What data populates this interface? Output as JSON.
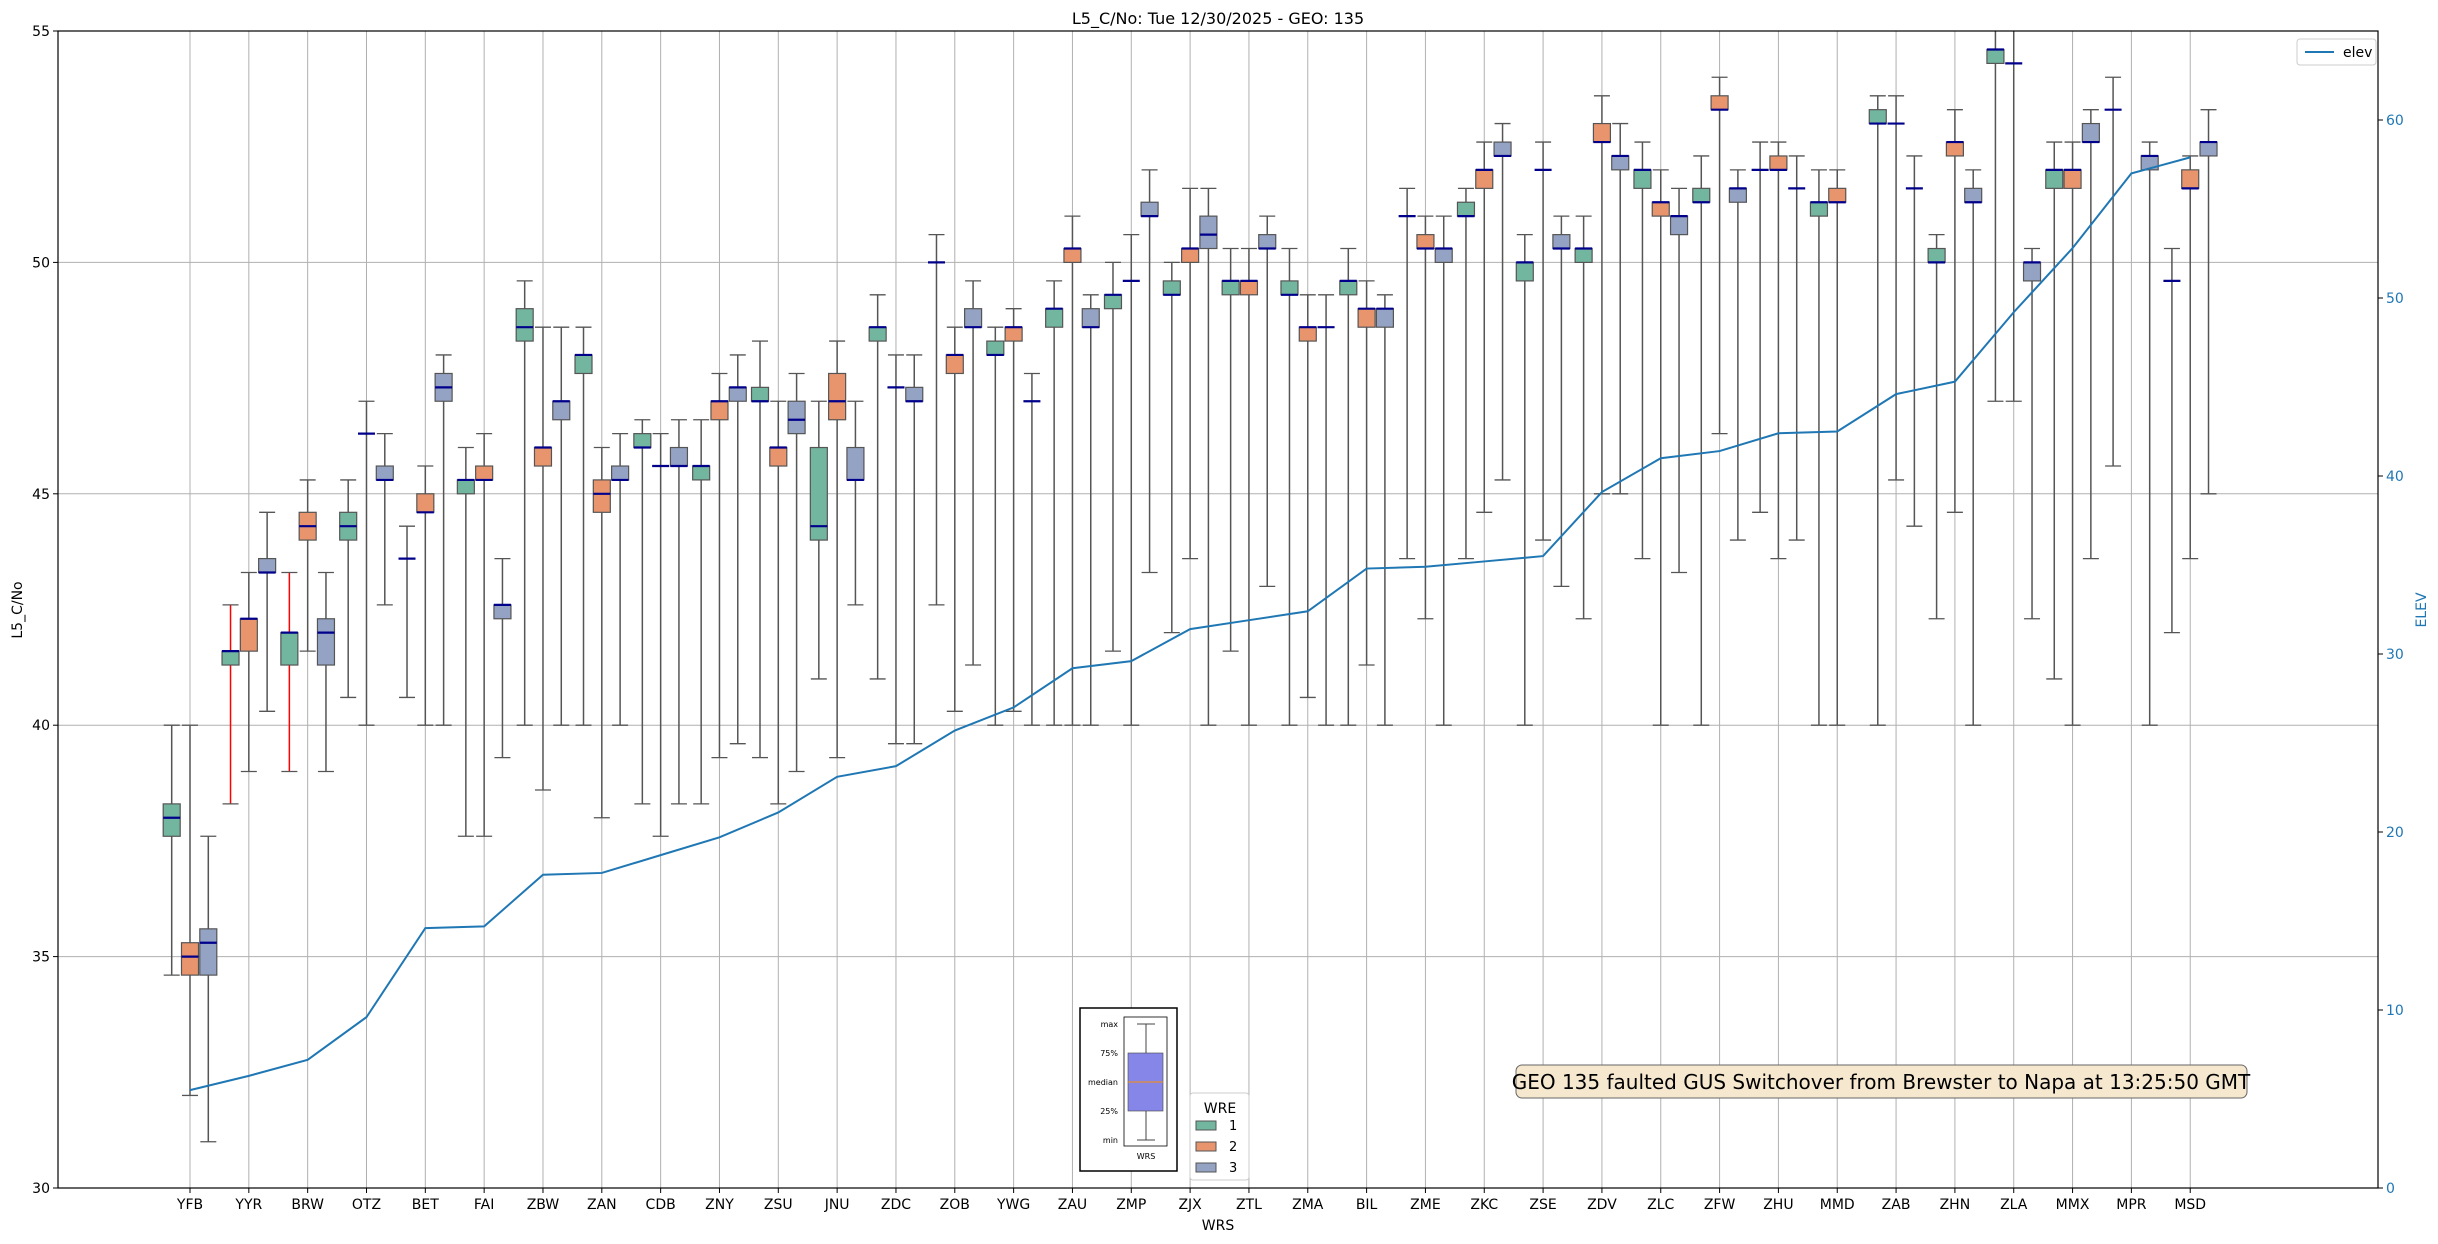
{
  "chart_data": {
    "type": "boxplot",
    "title": "L5_C/No: Tue 12/30/2025 - GEO: 135",
    "xlabel": "WRS",
    "ylabel": "L5_C/No",
    "y2label": "ELEV",
    "ylim": [
      30,
      55
    ],
    "y2lim": [
      0,
      65
    ],
    "yticks": [
      30,
      35,
      40,
      45,
      50,
      55
    ],
    "y2ticks": [
      0,
      10,
      20,
      30,
      40,
      50,
      60
    ],
    "grid": true,
    "colors": {
      "1": "#72b6a0",
      "2": "#e8956e",
      "3": "#94a3c4",
      "median": "#00008b",
      "whisker": "#555555",
      "flagged_whisker": "#ff0000",
      "elev": "#1f77b4"
    },
    "legend": {
      "title": "WRE",
      "entries": [
        "1",
        "2",
        "3"
      ],
      "placement": "bottom-center"
    },
    "line_legend": {
      "label": "elev",
      "placement": "top-right"
    },
    "annotation": "GEO 135 faulted GUS Switchover from Brewster to Napa at 13:25:50 GMT",
    "inset_key": {
      "labels": [
        "max",
        "75%",
        "median",
        "25%",
        "min"
      ],
      "xlabel": "WRS"
    },
    "box_stat_order": [
      "min",
      "q1",
      "median",
      "q3",
      "max"
    ],
    "stations": [
      {
        "name": "YFB",
        "elev": 5.5,
        "wre": {
          "1": [
            34.6,
            37.6,
            38.0,
            38.3,
            40
          ],
          "2": [
            32.0,
            34.6,
            35.0,
            35.3,
            40
          ],
          "3": [
            31.0,
            34.6,
            35.3,
            35.6,
            37.6
          ]
        }
      },
      {
        "name": "YYR",
        "elev": 6.3,
        "flagged": [
          "1"
        ],
        "wre": {
          "1": [
            38.3,
            41.3,
            41.6,
            41.6,
            42.6
          ],
          "2": [
            39.0,
            41.6,
            42.3,
            42.3,
            43.3
          ],
          "3": [
            40.3,
            43.3,
            43.3,
            43.6,
            44.6
          ]
        }
      },
      {
        "name": "BRW",
        "elev": 7.2,
        "flagged": [
          "1"
        ],
        "wre": {
          "1": [
            39.0,
            41.3,
            42.0,
            42.0,
            43.3
          ],
          "2": [
            41.6,
            44.0,
            44.3,
            44.6,
            45.3
          ],
          "3": [
            39.0,
            41.3,
            42.0,
            42.3,
            43.3
          ]
        }
      },
      {
        "name": "OTZ",
        "elev": 9.6,
        "wre": {
          "1": [
            40.6,
            44.0,
            44.3,
            44.6,
            45.3
          ],
          "2": [
            40,
            46.3,
            46.3,
            46.3,
            47.0
          ],
          "3": [
            42.6,
            45.3,
            45.3,
            45.6,
            46.3
          ]
        }
      },
      {
        "name": "BET",
        "elev": 14.6,
        "wre": {
          "1": [
            40.6,
            43.6,
            43.6,
            43.6,
            44.3
          ],
          "2": [
            40,
            44.6,
            44.6,
            45.0,
            45.6
          ],
          "3": [
            40,
            47.0,
            47.3,
            47.6,
            48.0
          ]
        }
      },
      {
        "name": "FAI",
        "elev": 14.7,
        "wre": {
          "1": [
            37.6,
            45.0,
            45.3,
            45.3,
            46.0
          ],
          "2": [
            37.6,
            45.3,
            45.3,
            45.6,
            46.3
          ],
          "3": [
            39.3,
            42.3,
            42.6,
            42.6,
            43.6
          ]
        }
      },
      {
        "name": "ZBW",
        "elev": 17.6,
        "wre": {
          "1": [
            40,
            48.3,
            48.6,
            49.0,
            49.6
          ],
          "2": [
            38.6,
            45.6,
            46.0,
            46.0,
            48.6
          ],
          "3": [
            40,
            46.6,
            47.0,
            47.0,
            48.6
          ]
        }
      },
      {
        "name": "ZAN",
        "elev": 17.7,
        "wre": {
          "1": [
            40,
            47.6,
            48.0,
            48.0,
            48.6
          ],
          "2": [
            38.0,
            44.6,
            45.0,
            45.3,
            46.0
          ],
          "3": [
            40,
            45.3,
            45.3,
            45.6,
            46.3
          ]
        }
      },
      {
        "name": "CDB",
        "elev": 18.7,
        "wre": {
          "1": [
            38.3,
            46.0,
            46.0,
            46.3,
            46.6
          ],
          "2": [
            37.6,
            45.6,
            45.6,
            45.6,
            46.3
          ],
          "3": [
            38.3,
            45.6,
            45.6,
            46.0,
            46.6
          ]
        }
      },
      {
        "name": "ZNY",
        "elev": 19.7,
        "wre": {
          "1": [
            38.3,
            45.3,
            45.6,
            45.6,
            46.6
          ],
          "2": [
            39.3,
            46.6,
            47.0,
            47.0,
            47.6
          ],
          "3": [
            39.6,
            47.0,
            47.3,
            47.3,
            48.0
          ]
        }
      },
      {
        "name": "ZSU",
        "elev": 21.1,
        "wre": {
          "1": [
            39.3,
            47.0,
            47.0,
            47.3,
            48.3
          ],
          "2": [
            38.3,
            45.6,
            46.0,
            46.0,
            47.0
          ],
          "3": [
            39.0,
            46.3,
            46.6,
            47.0,
            47.6
          ]
        }
      },
      {
        "name": "JNU",
        "elev": 23.1,
        "wre": {
          "1": [
            41.0,
            44.0,
            44.3,
            46.0,
            47.0
          ],
          "2": [
            39.3,
            46.6,
            47.0,
            47.6,
            48.3
          ],
          "3": [
            42.6,
            45.3,
            45.3,
            46.0,
            47.0
          ]
        }
      },
      {
        "name": "ZDC",
        "elev": 23.7,
        "wre": {
          "1": [
            41.0,
            48.3,
            48.6,
            48.6,
            49.3
          ],
          "2": [
            39.6,
            47.3,
            47.3,
            47.3,
            48.0
          ],
          "3": [
            39.6,
            47.0,
            47.0,
            47.3,
            48.0
          ]
        }
      },
      {
        "name": "ZOB",
        "elev": 25.7,
        "wre": {
          "1": [
            42.6,
            50.0,
            50.0,
            50.0,
            50.6
          ],
          "2": [
            40.3,
            47.6,
            48.0,
            48.0,
            48.6
          ],
          "3": [
            41.3,
            48.6,
            48.6,
            49.0,
            49.6
          ]
        }
      },
      {
        "name": "YWG",
        "elev": 27.0,
        "wre": {
          "1": [
            40,
            48.0,
            48.0,
            48.3,
            48.6
          ],
          "2": [
            40.3,
            48.3,
            48.6,
            48.6,
            49.0
          ],
          "3": [
            40,
            47.0,
            47.0,
            47.0,
            47.6
          ]
        }
      },
      {
        "name": "ZAU",
        "elev": 29.2,
        "wre": {
          "1": [
            40,
            48.6,
            49.0,
            49.0,
            49.6
          ],
          "2": [
            40,
            50.0,
            50.3,
            50.3,
            51.0
          ],
          "3": [
            40,
            48.6,
            48.6,
            49.0,
            49.3
          ]
        }
      },
      {
        "name": "ZMP",
        "elev": 29.6,
        "wre": {
          "1": [
            41.6,
            49.0,
            49.3,
            49.3,
            50.0
          ],
          "2": [
            40,
            49.6,
            49.6,
            49.6,
            50.6
          ],
          "3": [
            43.3,
            51.0,
            51.0,
            51.3,
            52.0
          ]
        }
      },
      {
        "name": "ZJX",
        "elev": 31.4,
        "wre": {
          "1": [
            42.0,
            49.3,
            49.3,
            49.6,
            50.0
          ],
          "2": [
            43.6,
            50.0,
            50.3,
            50.3,
            51.6
          ],
          "3": [
            40,
            50.3,
            50.6,
            51.0,
            51.6
          ]
        }
      },
      {
        "name": "ZTL",
        "elev": 31.9,
        "wre": {
          "1": [
            41.6,
            49.3,
            49.6,
            49.6,
            50.3
          ],
          "2": [
            40,
            49.3,
            49.6,
            49.6,
            50.3
          ],
          "3": [
            43.0,
            50.3,
            50.3,
            50.6,
            51.0
          ]
        }
      },
      {
        "name": "ZMA",
        "elev": 32.4,
        "wre": {
          "1": [
            40,
            49.3,
            49.3,
            49.6,
            50.3
          ],
          "2": [
            40.6,
            48.3,
            48.6,
            48.6,
            49.3
          ],
          "3": [
            40,
            48.6,
            48.6,
            48.6,
            49.3
          ]
        }
      },
      {
        "name": "BIL",
        "elev": 34.8,
        "wre": {
          "1": [
            40,
            49.3,
            49.6,
            49.6,
            50.3
          ],
          "2": [
            41.3,
            48.6,
            49.0,
            49.0,
            49.6
          ],
          "3": [
            40,
            48.6,
            49.0,
            49.0,
            49.3
          ]
        }
      },
      {
        "name": "ZME",
        "elev": 34.9,
        "wre": {
          "1": [
            43.6,
            51.0,
            51.0,
            51.0,
            51.6
          ],
          "2": [
            42.3,
            50.3,
            50.3,
            50.6,
            51.0
          ],
          "3": [
            40,
            50.0,
            50.3,
            50.3,
            51.0
          ]
        }
      },
      {
        "name": "ZKC",
        "elev": 35.2,
        "wre": {
          "1": [
            43.6,
            51.0,
            51.0,
            51.3,
            51.6
          ],
          "2": [
            44.6,
            51.6,
            52.0,
            52.0,
            52.6
          ],
          "3": [
            45.3,
            52.3,
            52.3,
            52.6,
            53.0
          ]
        }
      },
      {
        "name": "ZSE",
        "elev": 35.5,
        "wre": {
          "1": [
            40,
            49.6,
            50.0,
            50.0,
            50.6
          ],
          "2": [
            44.0,
            52.0,
            52.0,
            52.0,
            52.6
          ],
          "3": [
            43.0,
            50.3,
            50.3,
            50.6,
            51.0
          ]
        }
      },
      {
        "name": "ZDV",
        "elev": 39.1,
        "wre": {
          "1": [
            42.3,
            50.0,
            50.3,
            50.3,
            51.0
          ],
          "2": [
            45.0,
            52.6,
            52.6,
            53.0,
            53.6
          ],
          "3": [
            45.0,
            52.0,
            52.3,
            52.3,
            53.0
          ]
        }
      },
      {
        "name": "ZLC",
        "elev": 41.0,
        "wre": {
          "1": [
            43.6,
            51.6,
            52.0,
            52.0,
            52.6
          ],
          "2": [
            40,
            51.0,
            51.3,
            51.3,
            52.0
          ],
          "3": [
            43.3,
            50.6,
            51.0,
            51.0,
            51.6
          ]
        }
      },
      {
        "name": "ZFW",
        "elev": 41.4,
        "wre": {
          "1": [
            40,
            51.3,
            51.3,
            51.6,
            52.3
          ],
          "2": [
            46.3,
            53.3,
            53.3,
            53.6,
            54.0
          ],
          "3": [
            44.0,
            51.3,
            51.6,
            51.6,
            52.0
          ]
        }
      },
      {
        "name": "ZHU",
        "elev": 42.4,
        "wre": {
          "1": [
            44.6,
            52.0,
            52.0,
            52.0,
            52.6
          ],
          "2": [
            43.6,
            52.0,
            52.0,
            52.3,
            52.6
          ],
          "3": [
            44.0,
            51.6,
            51.6,
            51.6,
            52.3
          ]
        }
      },
      {
        "name": "MMD",
        "elev": 42.5,
        "wre": {
          "1": [
            40,
            51.0,
            51.3,
            51.3,
            52.0
          ],
          "2": [
            40,
            51.3,
            51.3,
            51.6,
            52.0
          ],
          "3": null
        }
      },
      {
        "name": "ZAB",
        "elev": 44.6,
        "wre": {
          "1": [
            40,
            53.0,
            53.0,
            53.3,
            53.6
          ],
          "2": [
            45.3,
            53.0,
            53.0,
            53.0,
            53.6
          ],
          "3": [
            44.3,
            51.6,
            51.6,
            51.6,
            52.3
          ]
        }
      },
      {
        "name": "ZHN",
        "elev": 45.3,
        "wre": {
          "1": [
            42.3,
            50.0,
            50.0,
            50.3,
            50.6
          ],
          "2": [
            44.6,
            52.3,
            52.6,
            52.6,
            53.3
          ],
          "3": [
            40,
            51.3,
            51.3,
            51.6,
            52.0
          ]
        }
      },
      {
        "name": "ZLA",
        "elev": 49.2,
        "wre": {
          "1": [
            47.0,
            54.3,
            54.6,
            54.6,
            55.3
          ],
          "2": [
            47.0,
            54.3,
            54.3,
            54.3,
            55.6
          ],
          "3": [
            42.3,
            49.6,
            50.0,
            50.0,
            50.3
          ]
        }
      },
      {
        "name": "MMX",
        "elev": 52.8,
        "wre": {
          "1": [
            41.0,
            51.6,
            52.0,
            52.0,
            52.6
          ],
          "2": [
            40,
            51.6,
            52.0,
            52.0,
            52.6
          ],
          "3": [
            43.6,
            52.6,
            52.6,
            53.0,
            53.3
          ]
        }
      },
      {
        "name": "MPR",
        "elev": 57.0,
        "wre": {
          "1": [
            45.6,
            53.3,
            53.3,
            53.3,
            54.0
          ],
          "2": null,
          "3": [
            40,
            52.0,
            52.3,
            52.3,
            52.6
          ]
        }
      },
      {
        "name": "MSD",
        "elev": 57.9,
        "wre": {
          "1": [
            42.0,
            49.6,
            49.6,
            49.6,
            50.3
          ],
          "2": [
            43.6,
            51.6,
            51.6,
            52.0,
            52.3
          ],
          "3": [
            45.0,
            52.3,
            52.6,
            52.6,
            53.3
          ]
        }
      }
    ]
  }
}
